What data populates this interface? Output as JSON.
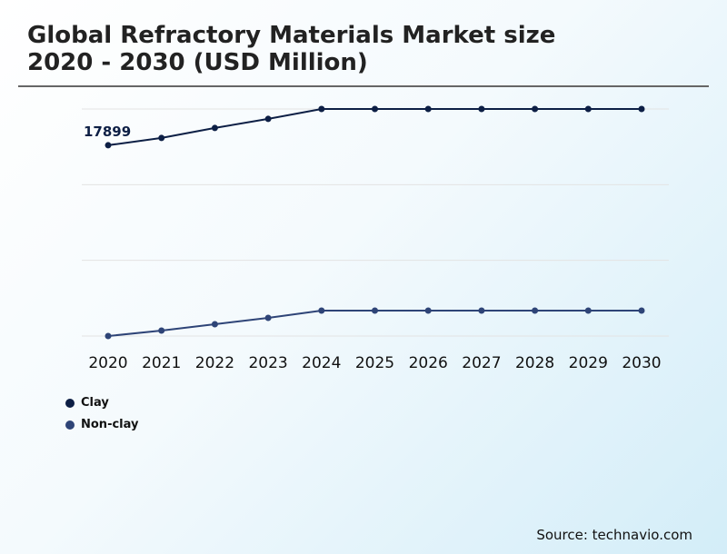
{
  "chart_data": {
    "type": "line",
    "title": "Global Refractory Materials Market size\n2020 - 2030 (USD Million)",
    "x": [
      2020,
      2021,
      2022,
      2023,
      2024,
      2025,
      2026,
      2027,
      2028,
      2029,
      2030
    ],
    "series": [
      {
        "name": "Clay",
        "color": "#0d1f45",
        "values": [
          17899,
          18581,
          19518,
          20370,
          21300,
          21300,
          21300,
          21300,
          21300,
          21300,
          21300
        ]
      },
      {
        "name": "Non-clay",
        "color": "#2e4477",
        "values": [
          0,
          511,
          1108,
          1704,
          2386,
          2386,
          2386,
          2386,
          2386,
          2386,
          2386
        ]
      }
    ],
    "data_labels": [
      {
        "series": "Clay",
        "x": 2020,
        "text": "17899"
      }
    ],
    "ylim": [
      0,
      21300
    ],
    "y_gridlines": [
      0,
      7100,
      14200,
      21300
    ],
    "y_ticks_shown": false,
    "grid": true,
    "legend_placement": "bottom-left"
  },
  "title_line1": "Global Refractory Materials Market size",
  "title_line2": "2020 - 2030 (USD Million)",
  "legend": [
    "Clay",
    "Non-clay"
  ],
  "source": "Source: technavio.com"
}
